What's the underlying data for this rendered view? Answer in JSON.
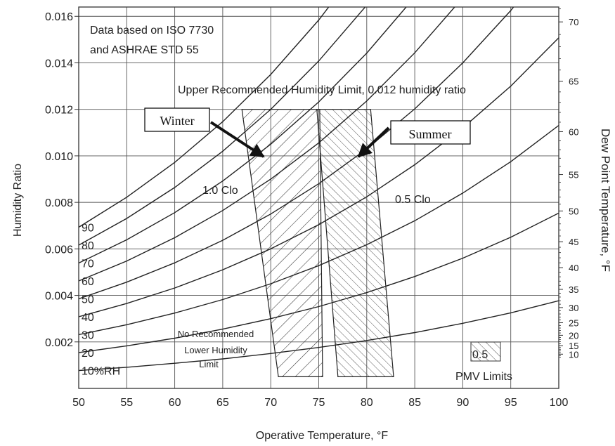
{
  "chart_data": {
    "type": "line",
    "title": "",
    "xlabel": "Operative Temperature, °F",
    "ylabel": "Humidity Ratio",
    "y2label": "Dew Point Temperature, °F",
    "xlim": [
      50,
      100
    ],
    "ylim": [
      0,
      0.0164
    ],
    "grid": true,
    "x_ticks": [
      "50",
      "55",
      "60",
      "65",
      "70",
      "75",
      "80",
      "85",
      "90",
      "95",
      "100"
    ],
    "y_ticks": [
      "0.002",
      "0.004",
      "0.006",
      "0.008",
      "0.010",
      "0.012",
      "0.014",
      "0.016"
    ],
    "y2_ticks": [
      "10",
      "15",
      "20",
      "25",
      "30",
      "35",
      "40",
      "45",
      "50",
      "55",
      "60",
      "65",
      "70"
    ],
    "series": [
      {
        "name": "10%RH",
        "x": [
          50,
          55,
          60,
          65,
          70,
          75,
          80,
          85,
          90,
          95,
          100
        ],
        "y": [
          0.00077,
          0.00091,
          0.00108,
          0.00127,
          0.0015,
          0.00176,
          0.00206,
          0.0024,
          0.0028,
          0.00325,
          0.00377
        ]
      },
      {
        "name": "20",
        "x": [
          50,
          55,
          60,
          65,
          70,
          75,
          80,
          85,
          90,
          95,
          100
        ],
        "y": [
          0.00154,
          0.00183,
          0.00216,
          0.00255,
          0.003,
          0.00352,
          0.00412,
          0.00481,
          0.0056,
          0.0065,
          0.00754
        ]
      },
      {
        "name": "30",
        "x": [
          50,
          55,
          60,
          65,
          70,
          75,
          80,
          85,
          90,
          95,
          100
        ],
        "y": [
          0.00231,
          0.00274,
          0.00324,
          0.00382,
          0.0045,
          0.00528,
          0.00618,
          0.00721,
          0.0084,
          0.00975,
          0.01131
        ]
      },
      {
        "name": "40",
        "x": [
          50,
          55,
          60,
          65,
          70,
          75,
          80,
          85,
          90,
          95,
          100
        ],
        "y": [
          0.00308,
          0.00365,
          0.00432,
          0.0051,
          0.006,
          0.00704,
          0.00824,
          0.00962,
          0.0112,
          0.013,
          0.01508
        ]
      },
      {
        "name": "50",
        "x": [
          50,
          55,
          60,
          65,
          70,
          75,
          80,
          85,
          90,
          95,
          100
        ],
        "y": [
          0.00385,
          0.00457,
          0.0054,
          0.00637,
          0.0075,
          0.0088,
          0.0103,
          0.01202,
          0.014,
          0.01625,
          0.01885
        ]
      },
      {
        "name": "60",
        "x": [
          50,
          55,
          60,
          65,
          70,
          75,
          80,
          85,
          90,
          95,
          100
        ],
        "y": [
          0.00462,
          0.00548,
          0.00648,
          0.00765,
          0.009,
          0.01056,
          0.01236,
          0.01443,
          0.0168,
          0.0195,
          0.02262
        ]
      },
      {
        "name": "70",
        "x": [
          50,
          55,
          60,
          65,
          70,
          75,
          80,
          85,
          90,
          95,
          100
        ],
        "y": [
          0.00539,
          0.00639,
          0.00756,
          0.00892,
          0.0105,
          0.01232,
          0.01442,
          0.01683,
          0.0196,
          0.02275,
          0.02639
        ]
      },
      {
        "name": "80",
        "x": [
          50,
          55,
          60,
          65,
          70,
          75,
          80,
          85,
          90,
          95,
          100
        ],
        "y": [
          0.00616,
          0.00731,
          0.00864,
          0.0102,
          0.012,
          0.01408,
          0.01648,
          0.01924,
          0.0224,
          0.026,
          0.03016
        ]
      },
      {
        "name": "90",
        "x": [
          50,
          55,
          60,
          65,
          70,
          75,
          80,
          85,
          90,
          95,
          100
        ],
        "y": [
          0.00693,
          0.00822,
          0.00972,
          0.01147,
          0.0135,
          0.01584,
          0.01854,
          0.02164,
          0.0252,
          0.02925,
          0.03393
        ]
      }
    ],
    "zones": [
      {
        "name": "1.0 Clo",
        "polygon": [
          [
            67.0,
            0.012
          ],
          [
            75.1,
            0.012
          ],
          [
            75.4,
            0.0005
          ],
          [
            70.8,
            0.0005
          ]
        ]
      },
      {
        "name": "0.5 Clo",
        "polygon": [
          [
            74.8,
            0.012
          ],
          [
            80.4,
            0.012
          ],
          [
            82.8,
            0.0005
          ],
          [
            77.0,
            0.0005
          ]
        ]
      }
    ],
    "annotations": {
      "source": [
        "Data based on ISO 7730",
        "and ASHRAE STD 55"
      ],
      "upper_limit": "Upper Recommended Humidity Limit, 0.012 humidity ratio",
      "lower_limit": [
        "No Recommended",
        "Lower Humidity",
        "Limit"
      ],
      "clo_1": "1.0 Clo",
      "clo_05": "0.5 Clo",
      "pmv_box": "0.5",
      "pmv_label": "PMV Limits",
      "winter": "Winter",
      "summer": "Summer"
    }
  }
}
